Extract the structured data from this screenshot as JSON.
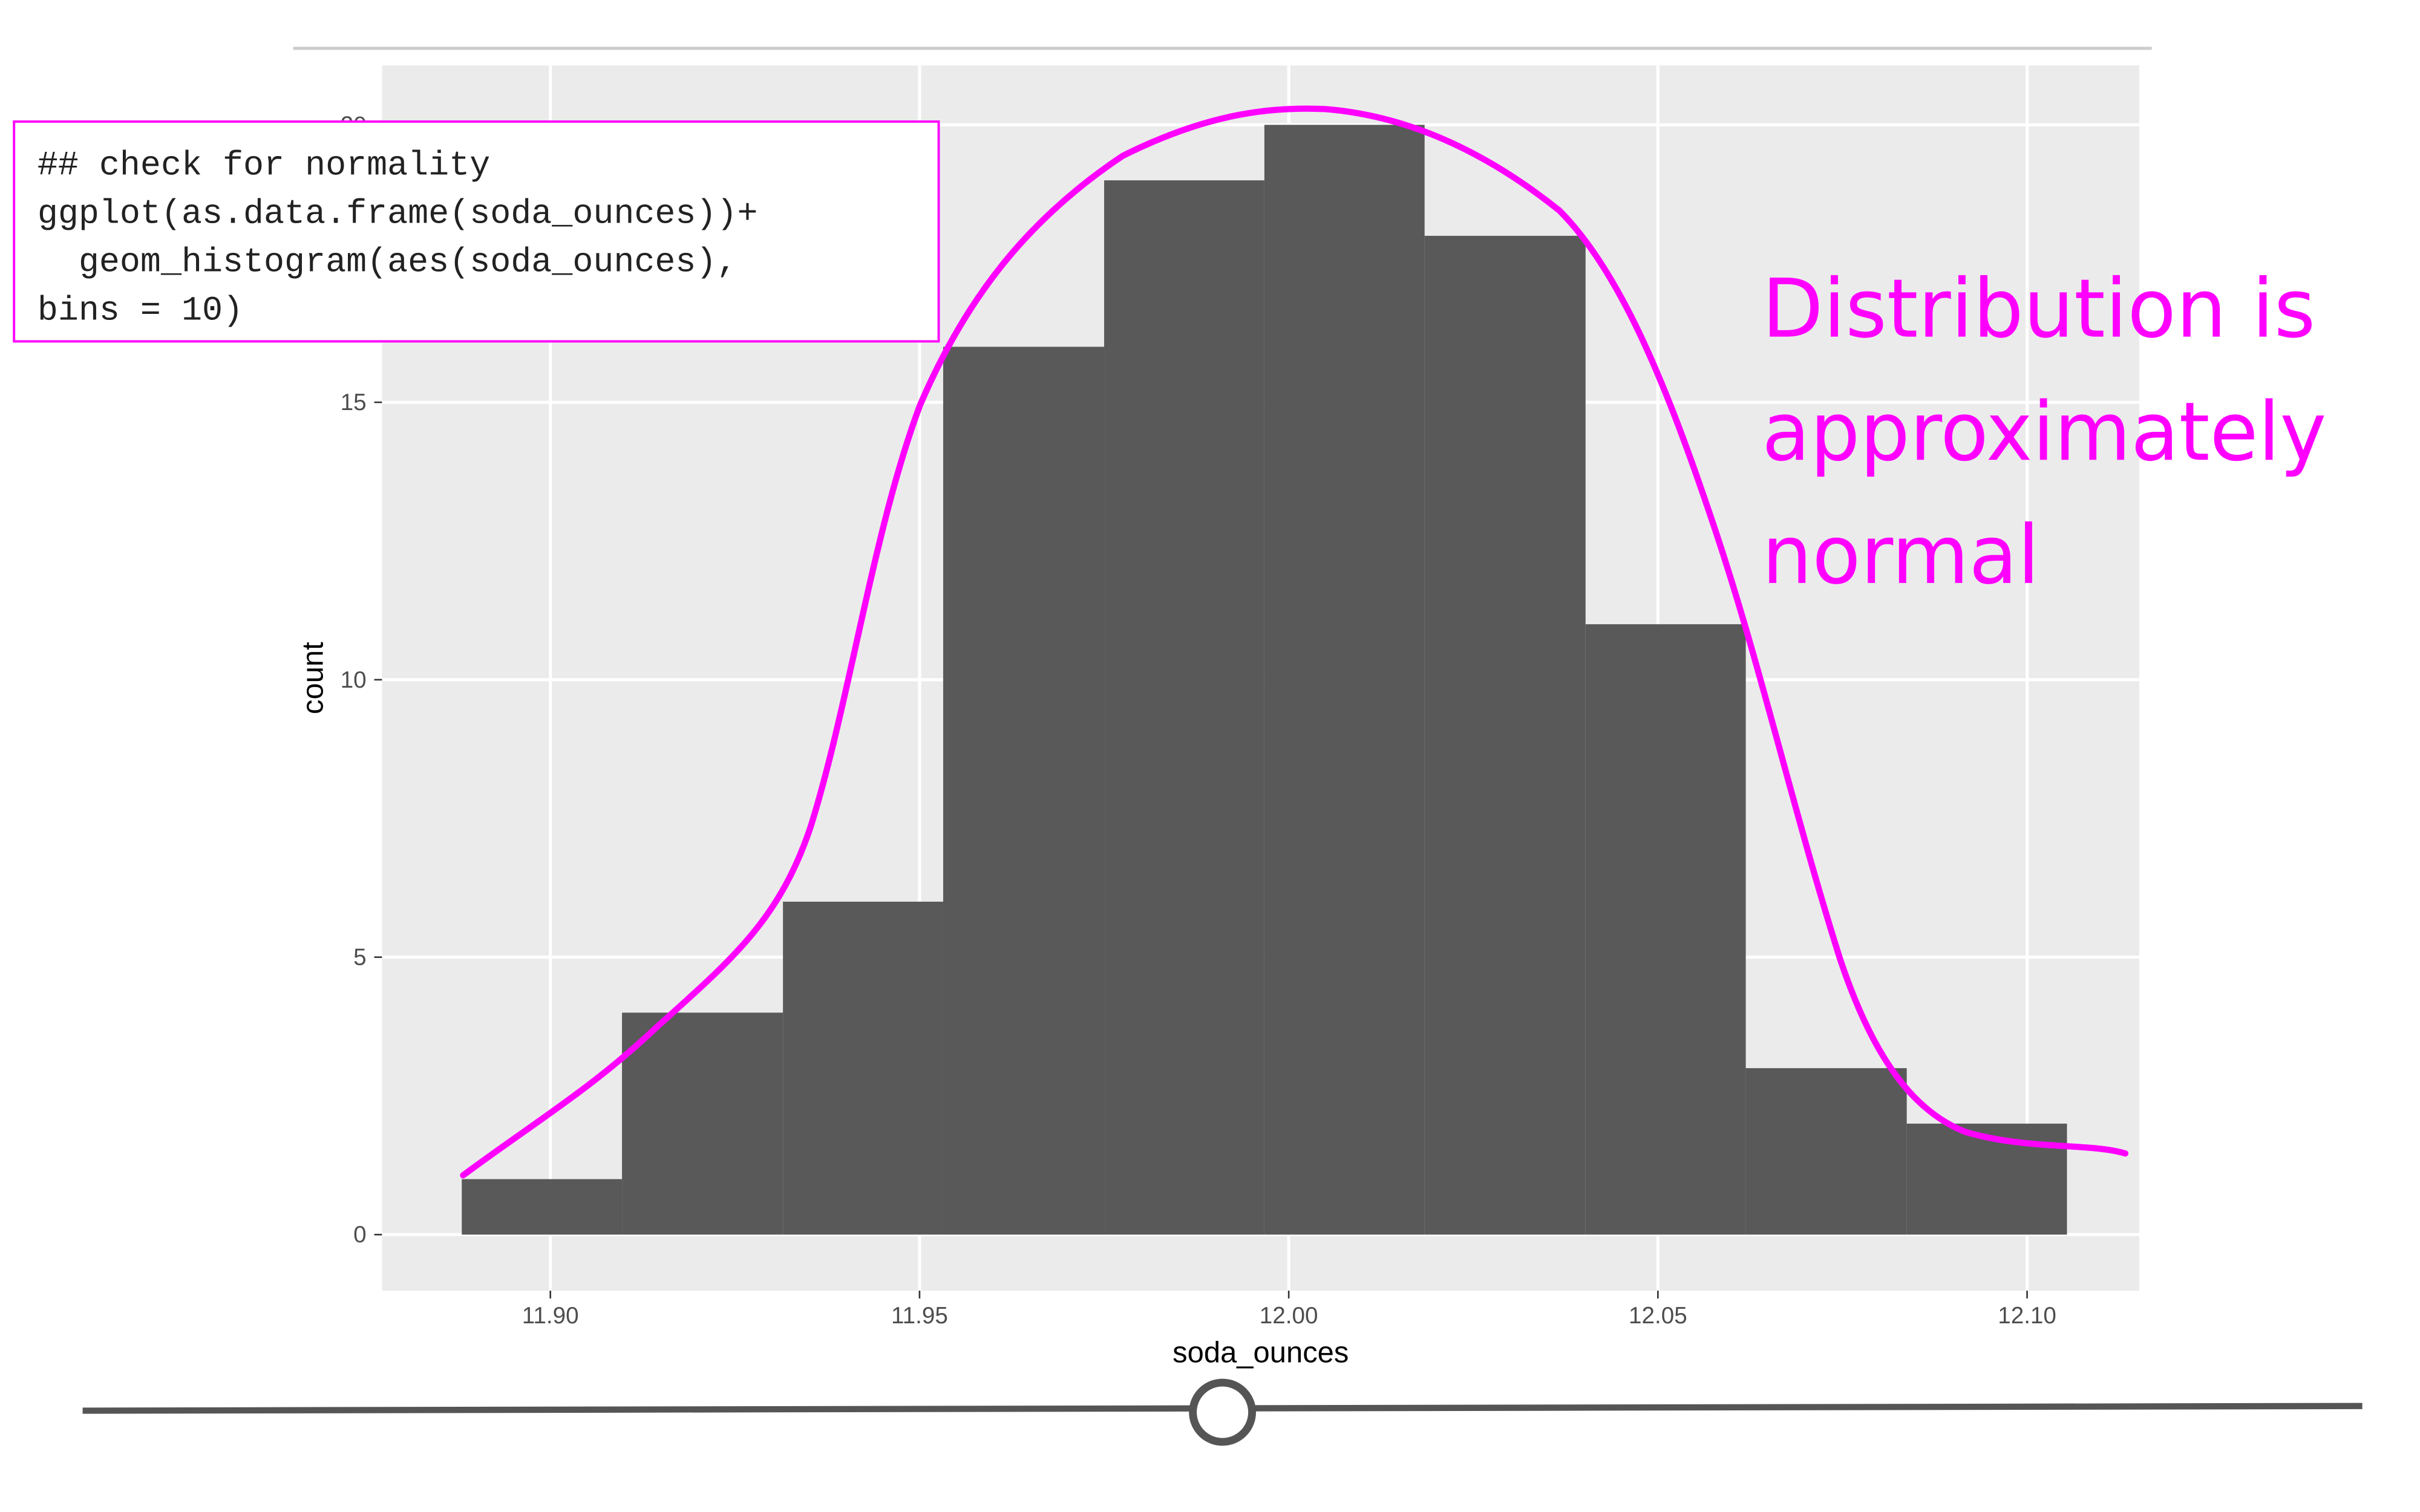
{
  "chart_data": {
    "type": "histogram",
    "x_label": "soda_ounces",
    "y_label": "count",
    "bins": [
      11.888,
      11.9097,
      11.9315,
      11.9532,
      11.975,
      11.9967,
      12.0184,
      12.0402,
      12.0619,
      12.0837,
      12.1054
    ],
    "values": [
      1,
      4,
      6,
      16,
      19,
      20,
      18,
      11,
      3,
      2
    ],
    "color": "#595959",
    "xlim": [
      11.8772,
      12.1152
    ],
    "ylim": [
      -1.01,
      21.07
    ],
    "xticks": [
      {
        "value": 11.9,
        "label": "11.90"
      },
      {
        "value": 11.95,
        "label": "11.95"
      },
      {
        "value": 12.0,
        "label": "12.00"
      },
      {
        "value": 12.05,
        "label": "12.05"
      },
      {
        "value": 12.1,
        "label": "12.10"
      }
    ],
    "yticks": [
      0,
      5,
      10,
      15,
      20
    ],
    "grid": true,
    "annotations": {
      "code": [
        "## check for normality",
        "ggplot(as.data.frame(soda_ounces))+",
        "  geom_histogram(aes(soda_ounces),",
        "bins = 10)"
      ],
      "note": [
        "Distribution is",
        "approximately",
        "normal"
      ]
    }
  }
}
